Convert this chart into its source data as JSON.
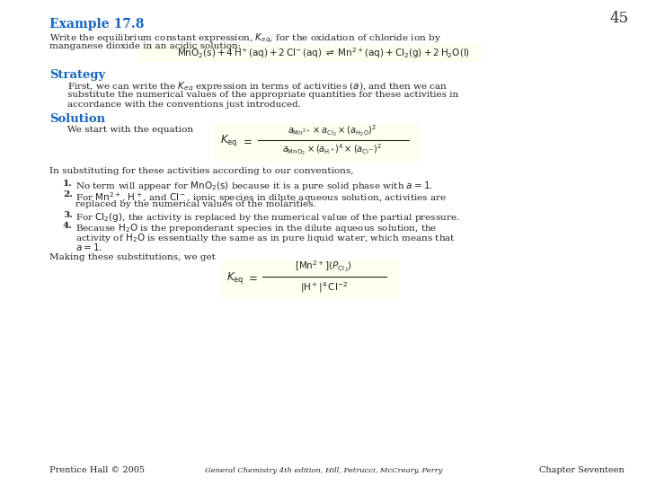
{
  "page_number": "45",
  "background_color": "#ffffff",
  "eq_box_color": "#fffff0",
  "title": "Example 17.8",
  "title_color": "#1565c0",
  "title_fontsize": 10,
  "page_num_fontsize": 12,
  "body_fontsize": 7.5,
  "small_fontsize": 6.5,
  "heading_fontsize": 9.5,
  "heading_color": "#1565c0",
  "footer_left": "Prentice Hall © 2005",
  "footer_center": "General Chemistry 4th edition, Hill, Petrucci, McCreary, Perry",
  "footer_right": "Chapter Seventeen"
}
